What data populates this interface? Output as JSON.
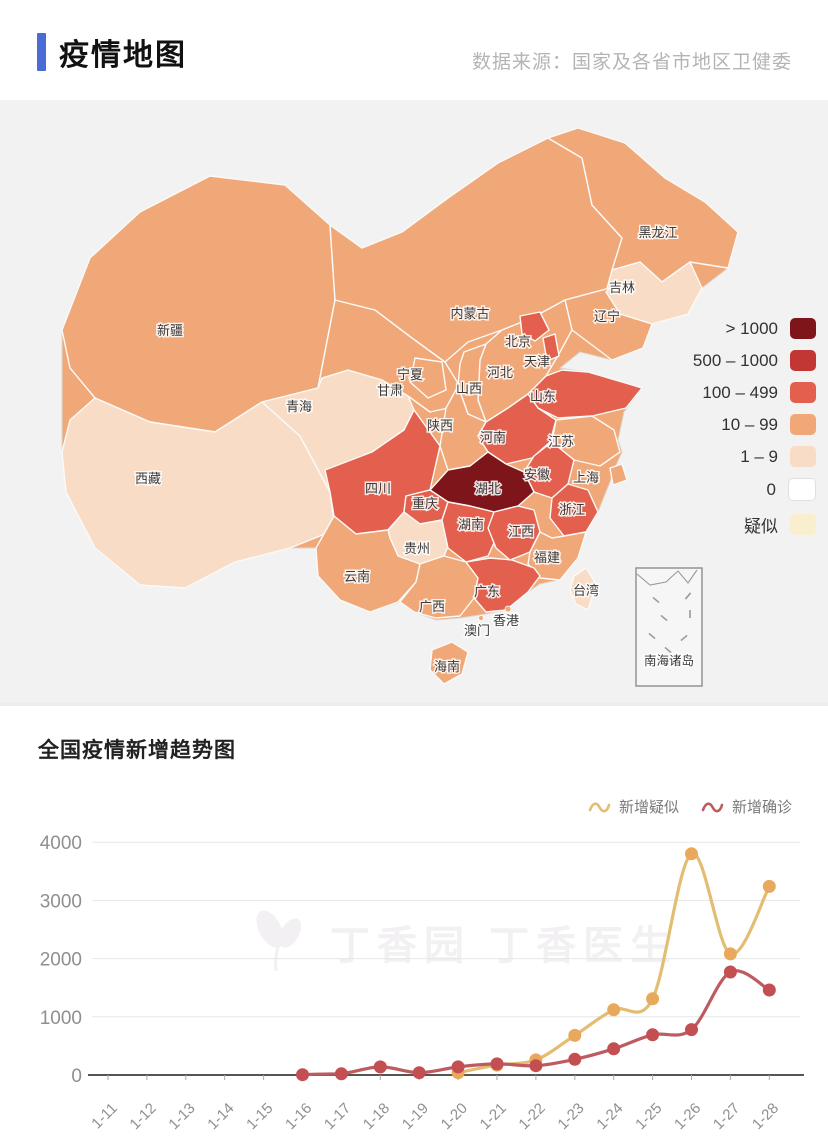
{
  "header": {
    "title": "疫情地图",
    "source": "数据来源：国家及各省市地区卫健委",
    "accent_color": "#4a6cd4"
  },
  "map": {
    "legend": [
      {
        "label": "> 1000",
        "color": "#7d151a"
      },
      {
        "label": "500 – 1000",
        "color": "#c23734"
      },
      {
        "label": "100 – 499",
        "color": "#e2604d"
      },
      {
        "label": "10 – 99",
        "color": "#f0a878"
      },
      {
        "label": "1 – 9",
        "color": "#f8dcc6"
      },
      {
        "label": "0",
        "color": "#ffffff"
      },
      {
        "label": "疑似",
        "color": "#f9efcf"
      }
    ],
    "inset_label": "南海诸岛",
    "provinces": [
      {
        "name": "新疆",
        "level": "10 – 99"
      },
      {
        "name": "西藏",
        "level": "1 – 9"
      },
      {
        "name": "青海",
        "level": "1 – 9"
      },
      {
        "name": "甘肃",
        "level": "10 – 99"
      },
      {
        "name": "内蒙古",
        "level": "10 – 99"
      },
      {
        "name": "黑龙江",
        "level": "10 – 99"
      },
      {
        "name": "吉林",
        "level": "1 – 9"
      },
      {
        "name": "辽宁",
        "level": "10 – 99"
      },
      {
        "name": "河北",
        "level": "10 – 99"
      },
      {
        "name": "山西",
        "level": "10 – 99"
      },
      {
        "name": "宁夏",
        "level": "10 – 99"
      },
      {
        "name": "陕西",
        "level": "10 – 99"
      },
      {
        "name": "山东",
        "level": "100 – 499"
      },
      {
        "name": "河南",
        "level": "100 – 499"
      },
      {
        "name": "江苏",
        "level": "10 – 99"
      },
      {
        "name": "安徽",
        "level": "100 – 499"
      },
      {
        "name": "上海",
        "level": "10 – 99"
      },
      {
        "name": "湖北",
        "level": "> 1000"
      },
      {
        "name": "浙江",
        "level": "100 – 499"
      },
      {
        "name": "四川",
        "level": "100 – 499"
      },
      {
        "name": "重庆",
        "level": "100 – 499"
      },
      {
        "name": "贵州",
        "level": "1 – 9"
      },
      {
        "name": "湖南",
        "level": "100 – 499"
      },
      {
        "name": "江西",
        "level": "100 – 499"
      },
      {
        "name": "福建",
        "level": "10 – 99"
      },
      {
        "name": "云南",
        "level": "10 – 99"
      },
      {
        "name": "广西",
        "level": "10 – 99"
      },
      {
        "name": "广东",
        "level": "100 – 499"
      },
      {
        "name": "北京",
        "level": "100 – 499"
      },
      {
        "name": "天津",
        "level": "100 – 499"
      },
      {
        "name": "台湾",
        "level": "1 – 9"
      },
      {
        "name": "海南",
        "level": "10 – 99"
      },
      {
        "name": "香港",
        "level": "10 – 99"
      },
      {
        "name": "澳门",
        "level": "10 – 99"
      }
    ]
  },
  "chart_data": {
    "type": "line",
    "title": "全国疫情新增趋势图",
    "watermark": "丁香园 丁香医生",
    "categories": [
      "1-11",
      "1-12",
      "1-13",
      "1-14",
      "1-15",
      "1-16",
      "1-17",
      "1-18",
      "1-19",
      "1-20",
      "1-21",
      "1-22",
      "1-23",
      "1-24",
      "1-25",
      "1-26",
      "1-27",
      "1-28"
    ],
    "series": [
      {
        "name": "新增疑似",
        "color": "#e2bd72",
        "marker_color": "#e9a95c",
        "values": [
          null,
          null,
          null,
          null,
          null,
          null,
          null,
          null,
          null,
          40,
          170,
          260,
          680,
          1120,
          1310,
          3800,
          2080,
          3240
        ]
      },
      {
        "name": "新增确诊",
        "color": "#bd5c60",
        "marker_color": "#c34f52",
        "values": [
          null,
          null,
          null,
          null,
          null,
          5,
          20,
          140,
          40,
          140,
          190,
          160,
          270,
          450,
          690,
          780,
          1770,
          1460
        ]
      }
    ],
    "ylabel": "",
    "xlabel": "",
    "ylim": [
      0,
      4000
    ],
    "yticks": [
      0,
      1000,
      2000,
      3000,
      4000
    ],
    "grid": true,
    "legend_position": "top-right"
  }
}
